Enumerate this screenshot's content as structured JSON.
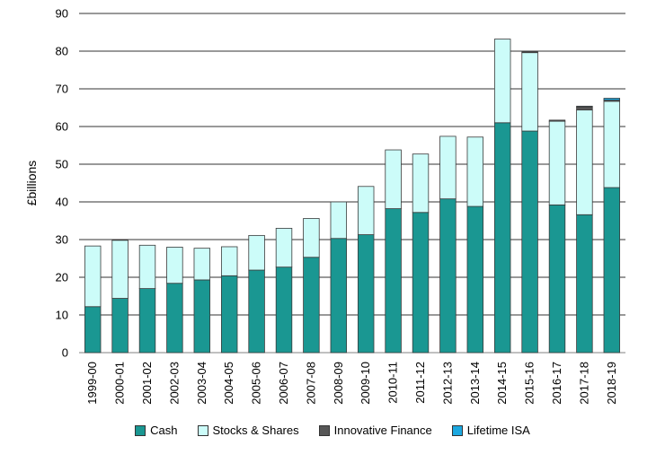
{
  "chart_data": {
    "type": "bar",
    "stacked": true,
    "title": "",
    "xlabel": "",
    "ylabel": "£billions",
    "ylim": [
      0,
      90
    ],
    "yticks": [
      0,
      10,
      20,
      30,
      40,
      50,
      60,
      70,
      80,
      90
    ],
    "grid": true,
    "legend_position": "bottom",
    "categories": [
      "1999-00",
      "2000-01",
      "2001-02",
      "2002-03",
      "2003-04",
      "2004-05",
      "2005-06",
      "2006-07",
      "2007-08",
      "2008-09",
      "2009-10",
      "2010-11",
      "2011-12",
      "2012-13",
      "2013-14",
      "2014-15",
      "2015-16",
      "2016-17",
      "2017-18",
      "2018-19"
    ],
    "series": [
      {
        "name": "Cash",
        "color": "#1a9792",
        "values": [
          12.2,
          14.4,
          17.0,
          18.4,
          19.3,
          20.4,
          21.9,
          22.7,
          25.3,
          30.3,
          31.3,
          38.2,
          37.2,
          40.8,
          38.8,
          61.0,
          58.8,
          39.2,
          36.6,
          43.8
        ]
      },
      {
        "name": "Stocks & Shares",
        "color": "#ccfcf9",
        "values": [
          16.1,
          15.4,
          11.5,
          9.6,
          8.4,
          7.7,
          9.2,
          10.3,
          10.3,
          9.7,
          12.8,
          15.6,
          15.5,
          16.6,
          18.4,
          22.2,
          20.8,
          22.2,
          27.8,
          22.9
        ]
      },
      {
        "name": "Innovative Finance",
        "color": "#575757",
        "values": [
          0,
          0,
          0,
          0,
          0,
          0,
          0,
          0,
          0,
          0,
          0,
          0,
          0,
          0,
          0,
          0,
          0.3,
          0.3,
          0.8,
          0.3
        ]
      },
      {
        "name": "Lifetime ISA",
        "color": "#1ca8e0",
        "values": [
          0,
          0,
          0,
          0,
          0,
          0,
          0,
          0,
          0,
          0,
          0,
          0,
          0,
          0,
          0,
          0,
          0,
          0,
          0.2,
          0.5
        ]
      }
    ]
  }
}
